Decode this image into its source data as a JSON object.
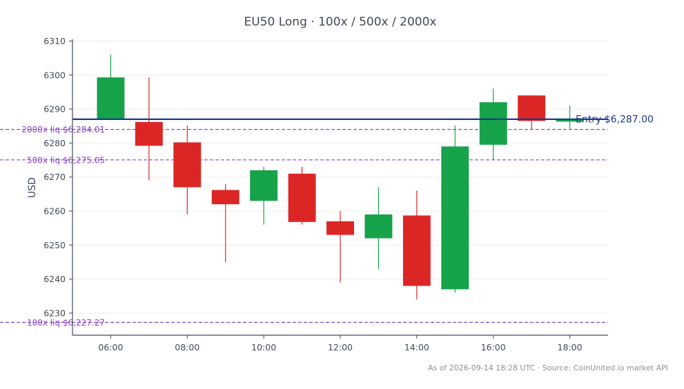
{
  "colors": {
    "up": "#16a34a",
    "down": "#dc2626",
    "entry": "#1e3a8a",
    "liq": "#8b45c8",
    "text": "#3f4a5a",
    "grid": "#ececec",
    "axis": "#3f4a5a",
    "footer": "#8a8f98"
  },
  "footer": "As of 2026-09-14 18:28 UTC · Source: CoinUnited.io market API",
  "chart_data": {
    "type": "candlestick",
    "title": "EU50 Long · 100x / 500x / 2000x",
    "ylabel": "USD",
    "xlabel": "",
    "ylim": [
      6223.5,
      6310.5
    ],
    "xlim": [
      5.0,
      19.0
    ],
    "yticks": [
      6230,
      6240,
      6250,
      6260,
      6270,
      6280,
      6290,
      6300,
      6310
    ],
    "xticks": [
      {
        "x": 6,
        "label": "06:00"
      },
      {
        "x": 8,
        "label": "08:00"
      },
      {
        "x": 10,
        "label": "10:00"
      },
      {
        "x": 12,
        "label": "12:00"
      },
      {
        "x": 14,
        "label": "14:00"
      },
      {
        "x": 16,
        "label": "16:00"
      },
      {
        "x": 18,
        "label": "18:00"
      }
    ],
    "grid": true,
    "candles": [
      {
        "x": 6,
        "open": 6287,
        "high": 6306,
        "low": 6287,
        "close": 6299.3
      },
      {
        "x": 7,
        "open": 6286.2,
        "high": 6299.3,
        "low": 6269,
        "close": 6279.2
      },
      {
        "x": 8,
        "open": 6280.2,
        "high": 6285.2,
        "low": 6259,
        "close": 6267
      },
      {
        "x": 9,
        "open": 6266.2,
        "high": 6268,
        "low": 6245,
        "close": 6262
      },
      {
        "x": 10,
        "open": 6263,
        "high": 6273,
        "low": 6256,
        "close": 6272
      },
      {
        "x": 11,
        "open": 6271,
        "high": 6273,
        "low": 6256,
        "close": 6256.8
      },
      {
        "x": 12,
        "open": 6257,
        "high": 6260,
        "low": 6239,
        "close": 6253
      },
      {
        "x": 13,
        "open": 6252,
        "high": 6267,
        "low": 6243,
        "close": 6259
      },
      {
        "x": 14,
        "open": 6258.7,
        "high": 6266,
        "low": 6234,
        "close": 6238
      },
      {
        "x": 15,
        "open": 6237,
        "high": 6285.2,
        "low": 6236,
        "close": 6279
      },
      {
        "x": 16,
        "open": 6279.5,
        "high": 6296,
        "low": 6275,
        "close": 6292
      },
      {
        "x": 17,
        "open": 6294,
        "high": 6294,
        "low": 6284,
        "close": 6286.5
      },
      {
        "x": 18,
        "open": 6286.3,
        "high": 6291,
        "low": 6284,
        "close": 6286.9
      }
    ],
    "entry": {
      "value": 6287.0,
      "label": "Entry $6,287.00"
    },
    "liquidation_levels": [
      {
        "value": 6284.01,
        "label": "2000x liq $6,284.01"
      },
      {
        "value": 6275.05,
        "label": "500x liq $6,275.05"
      },
      {
        "value": 6227.27,
        "label": "100x liq $6,227.27"
      }
    ]
  }
}
